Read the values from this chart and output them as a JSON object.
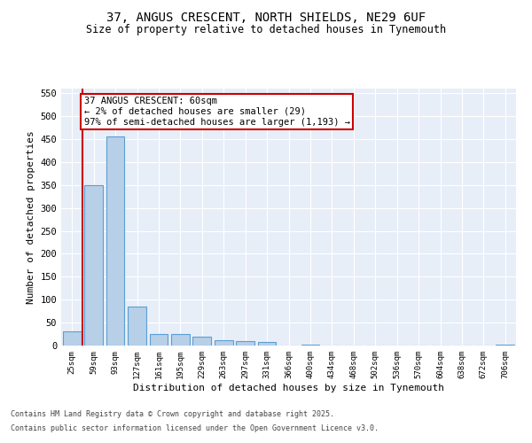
{
  "title_line1": "37, ANGUS CRESCENT, NORTH SHIELDS, NE29 6UF",
  "title_line2": "Size of property relative to detached houses in Tynemouth",
  "xlabel": "Distribution of detached houses by size in Tynemouth",
  "ylabel": "Number of detached properties",
  "categories": [
    "25sqm",
    "59sqm",
    "93sqm",
    "127sqm",
    "161sqm",
    "195sqm",
    "229sqm",
    "263sqm",
    "297sqm",
    "331sqm",
    "366sqm",
    "400sqm",
    "434sqm",
    "468sqm",
    "502sqm",
    "536sqm",
    "570sqm",
    "604sqm",
    "638sqm",
    "672sqm",
    "706sqm"
  ],
  "values": [
    30,
    350,
    455,
    85,
    25,
    25,
    20,
    12,
    10,
    8,
    0,
    2,
    0,
    0,
    0,
    0,
    0,
    0,
    0,
    0,
    2
  ],
  "bar_color": "#b8cfe8",
  "bar_edge_color": "#5a9fd4",
  "highlight_line_color": "#cc0000",
  "annotation_line1": "37 ANGUS CRESCENT: 60sqm",
  "annotation_line2": "← 2% of detached houses are smaller (29)",
  "annotation_line3": "97% of semi-detached houses are larger (1,193) →",
  "annotation_box_color": "#cc0000",
  "background_color": "#e8eef8",
  "ylim": [
    0,
    560
  ],
  "yticks": [
    0,
    50,
    100,
    150,
    200,
    250,
    300,
    350,
    400,
    450,
    500,
    550
  ],
  "footer_line1": "Contains HM Land Registry data © Crown copyright and database right 2025.",
  "footer_line2": "Contains public sector information licensed under the Open Government Licence v3.0."
}
